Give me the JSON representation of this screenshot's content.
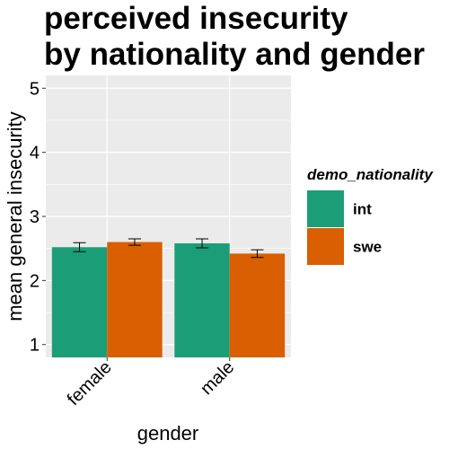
{
  "chart_data": {
    "type": "bar",
    "title_lines": [
      "perceived insecurity",
      "by nationality and gender"
    ],
    "xlabel": "gender",
    "ylabel": "mean general insecurity",
    "categories": [
      "female",
      "male"
    ],
    "yticks": [
      "1",
      "2",
      "3",
      "4",
      "5"
    ],
    "ylim": [
      0.8,
      5.2
    ],
    "grid": true,
    "legend_title": "demo_nationality",
    "legend_position": "right",
    "series": [
      {
        "name": "int",
        "color": "#1B9E77",
        "values": [
          2.52,
          2.58
        ],
        "err": [
          0.07,
          0.07
        ]
      },
      {
        "name": "swe",
        "color": "#D95F02",
        "values": [
          2.6,
          2.42
        ],
        "err": [
          0.05,
          0.06
        ]
      }
    ]
  }
}
